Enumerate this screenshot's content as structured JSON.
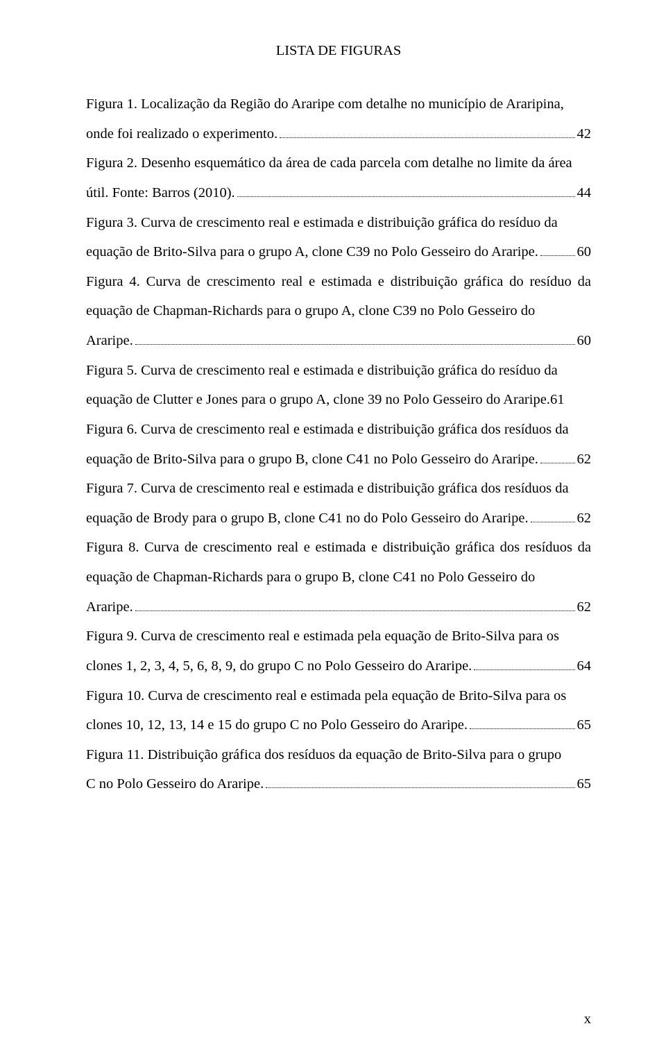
{
  "title": "LISTA DE FIGURAS",
  "entries": [
    {
      "pre": "Figura 1. Localização da Região do Araripe com detalhe no município de Araripina,",
      "last": "onde foi realizado o experimento.",
      "page": "42"
    },
    {
      "pre": "Figura 2. Desenho esquemático da área de cada parcela com detalhe no limite da área",
      "last": "útil. Fonte: Barros (2010).",
      "page": "44"
    },
    {
      "pre": "Figura 3. Curva de crescimento real e estimada e distribuição gráfica do resíduo da",
      "last": "equação de Brito-Silva para o grupo A, clone C39 no Polo Gesseiro do Araripe.",
      "page": "60"
    },
    {
      "pre": "Figura 4. Curva de crescimento real e estimada e distribuição gráfica do resíduo da equação de Chapman-Richards para o grupo A, clone C39 no Polo Gesseiro do",
      "last": "Araripe.",
      "page": "60"
    },
    {
      "pre": "Figura 5. Curva de crescimento real e estimada e distribuição gráfica do resíduo da",
      "last": "equação de Clutter e Jones para o grupo A, clone 39 no Polo Gesseiro do Araripe.",
      "page": "61",
      "nolead": true
    },
    {
      "pre": "Figura 6. Curva de crescimento real e estimada e distribuição gráfica dos resíduos da",
      "last": "equação de Brito-Silva para o grupo B, clone C41 no Polo Gesseiro do Araripe.",
      "page": "62"
    },
    {
      "pre": "Figura 7. Curva de crescimento real e estimada e distribuição gráfica dos resíduos da",
      "last": "equação de Brody para o grupo B, clone C41 no do Polo Gesseiro do Araripe.",
      "page": "62"
    },
    {
      "pre": "Figura 8. Curva de crescimento real e estimada e distribuição gráfica dos resíduos da equação de Chapman-Richards para o grupo B, clone C41 no Polo Gesseiro do",
      "last": "Araripe.",
      "page": "62"
    },
    {
      "pre": "Figura 9. Curva de crescimento real e estimada pela equação de Brito-Silva para os",
      "last": "clones 1, 2, 3, 4, 5, 6, 8, 9, do grupo C no Polo Gesseiro do Araripe.",
      "page": "64"
    },
    {
      "pre": "Figura 10. Curva de crescimento real e estimada pela equação de Brito-Silva para os",
      "last": "clones 10, 12, 13, 14 e 15 do grupo C no Polo Gesseiro do Araripe.",
      "page": "65"
    },
    {
      "pre": "Figura 11. Distribuição gráfica dos resíduos da equação de Brito-Silva para o grupo",
      "last": "C no Polo Gesseiro do Araripe.",
      "page": "65"
    }
  ],
  "footer_page": "x"
}
